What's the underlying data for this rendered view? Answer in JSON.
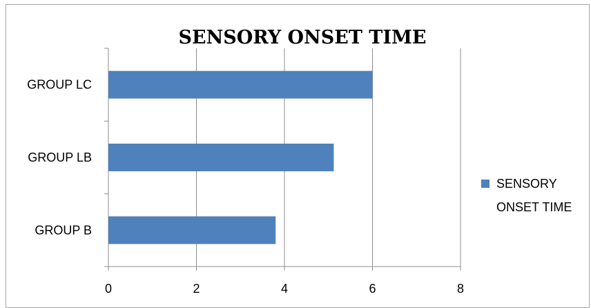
{
  "chart_data": {
    "type": "bar",
    "orientation": "horizontal",
    "title": "SENSORY ONSET TIME",
    "categories": [
      "GROUP LC",
      "GROUP LB",
      "GROUP B"
    ],
    "series": [
      {
        "name": "SENSORY ONSET TIME",
        "values": [
          6.0,
          5.12,
          3.8
        ],
        "color": "#4f81bd"
      }
    ],
    "xlim": [
      0,
      8
    ],
    "xticks": [
      "0",
      "2",
      "4",
      "6",
      "8"
    ],
    "xlabel": "",
    "ylabel": "",
    "grid": "vertical",
    "legend": {
      "position": "right",
      "lines": [
        "SENSORY",
        "ONSET TIME"
      ]
    }
  }
}
